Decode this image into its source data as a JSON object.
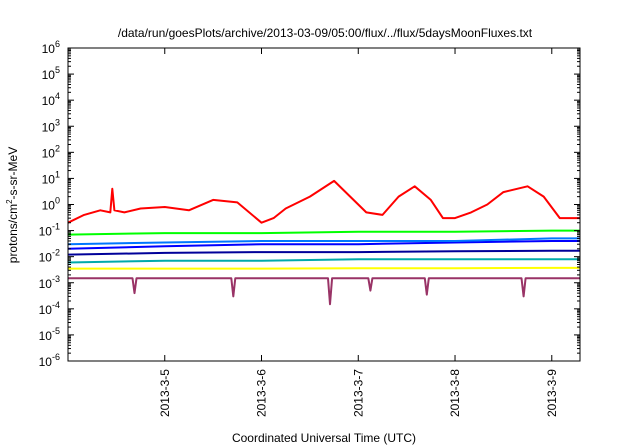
{
  "chart_data": {
    "type": "line",
    "title": "/data/run/goesPlots/archive/2013-03-09/05:00/flux/../flux/5daysMoonFluxes.txt",
    "xlabel": "Coordinated Universal Time (UTC)",
    "ylabel": {
      "pre": "protons/cm",
      "sup": "2",
      "post": "-s-sr-MeV"
    },
    "yscale": "log",
    "ylim": [
      1e-06,
      1000000.0
    ],
    "y_ticks": [
      {
        "base": "10",
        "exp": "-6",
        "value": 1e-06
      },
      {
        "base": "10",
        "exp": "-5",
        "value": 1e-05
      },
      {
        "base": "10",
        "exp": "-4",
        "value": 0.0001
      },
      {
        "base": "10",
        "exp": "-3",
        "value": 0.001
      },
      {
        "base": "10",
        "exp": "-2",
        "value": 0.01
      },
      {
        "base": "10",
        "exp": "-1",
        "value": 0.1
      },
      {
        "base": "10",
        "exp": "0",
        "value": 1
      },
      {
        "base": "10",
        "exp": "1",
        "value": 10
      },
      {
        "base": "10",
        "exp": "2",
        "value": 100
      },
      {
        "base": "10",
        "exp": "3",
        "value": 1000
      },
      {
        "base": "10",
        "exp": "4",
        "value": 10000
      },
      {
        "base": "10",
        "exp": "5",
        "value": 100000
      },
      {
        "base": "10",
        "exp": "6",
        "value": 1000000
      }
    ],
    "xlim": [
      "2013-03-04T00:00",
      "2013-03-09T07:00"
    ],
    "x_ticks": [
      {
        "label": "2013-3-5",
        "value": "2013-03-05T00:00"
      },
      {
        "label": "2013-3-6",
        "value": "2013-03-06T00:00"
      },
      {
        "label": "2013-3-7",
        "value": "2013-03-07T00:00"
      },
      {
        "label": "2013-3-8",
        "value": "2013-03-08T00:00"
      },
      {
        "label": "2013-3-9",
        "value": "2013-03-09T00:00"
      }
    ],
    "grid": false,
    "series": [
      {
        "color": "#ff0000",
        "x": [
          "2013-03-04T00:00",
          "2013-03-04T04:00",
          "2013-03-04T08:00",
          "2013-03-04T10:30",
          "2013-03-04T11:00",
          "2013-03-04T11:30",
          "2013-03-04T14:00",
          "2013-03-04T18:00",
          "2013-03-05T00:00",
          "2013-03-05T06:00",
          "2013-03-05T12:00",
          "2013-03-05T18:00",
          "2013-03-06T00:00",
          "2013-03-06T03:00",
          "2013-03-06T06:00",
          "2013-03-06T12:00",
          "2013-03-06T18:00",
          "2013-03-06T22:00",
          "2013-03-07T02:00",
          "2013-03-07T06:00",
          "2013-03-07T10:00",
          "2013-03-07T14:00",
          "2013-03-07T18:00",
          "2013-03-07T21:00",
          "2013-03-08T00:00",
          "2013-03-08T04:00",
          "2013-03-08T08:00",
          "2013-03-08T12:00",
          "2013-03-08T18:00",
          "2013-03-08T22:00",
          "2013-03-09T02:00",
          "2013-03-09T07:00"
        ],
        "values": [
          0.2,
          0.4,
          0.6,
          0.5,
          4,
          0.6,
          0.5,
          0.7,
          0.8,
          0.6,
          1.5,
          1.2,
          0.2,
          0.3,
          0.7,
          2,
          8,
          2,
          0.5,
          0.4,
          2,
          5,
          1.5,
          0.3,
          0.3,
          0.5,
          1,
          3,
          5,
          2,
          0.3,
          0.3
        ]
      },
      {
        "color": "#00ff00",
        "x": [
          "2013-03-04T00:00",
          "2013-03-05T00:00",
          "2013-03-06T00:00",
          "2013-03-07T00:00",
          "2013-03-08T00:00",
          "2013-03-09T00:00",
          "2013-03-09T07:00"
        ],
        "values": [
          0.07,
          0.08,
          0.08,
          0.09,
          0.09,
          0.1,
          0.1
        ]
      },
      {
        "color": "#0000ff",
        "x": [
          "2013-03-04T00:00",
          "2013-03-05T00:00",
          "2013-03-06T00:00",
          "2013-03-07T00:00",
          "2013-03-08T00:00",
          "2013-03-09T00:00",
          "2013-03-09T07:00"
        ],
        "values": [
          0.02,
          0.025,
          0.03,
          0.03,
          0.035,
          0.04,
          0.04
        ]
      },
      {
        "color": "#0077ff",
        "x": [
          "2013-03-04T00:00",
          "2013-03-05T00:00",
          "2013-03-06T00:00",
          "2013-03-07T00:00",
          "2013-03-08T00:00",
          "2013-03-09T00:00",
          "2013-03-09T07:00"
        ],
        "values": [
          0.03,
          0.035,
          0.04,
          0.04,
          0.04,
          0.05,
          0.05
        ]
      },
      {
        "color": "#000099",
        "x": [
          "2013-03-04T00:00",
          "2013-03-05T00:00",
          "2013-03-06T00:00",
          "2013-03-07T00:00",
          "2013-03-08T00:00",
          "2013-03-09T00:00",
          "2013-03-09T07:00"
        ],
        "values": [
          0.012,
          0.014,
          0.015,
          0.015,
          0.016,
          0.017,
          0.017
        ]
      },
      {
        "color": "#00aaaa",
        "x": [
          "2013-03-04T00:00",
          "2013-03-05T00:00",
          "2013-03-06T00:00",
          "2013-03-07T00:00",
          "2013-03-08T00:00",
          "2013-03-09T00:00",
          "2013-03-09T07:00"
        ],
        "values": [
          0.006,
          0.007,
          0.007,
          0.008,
          0.008,
          0.008,
          0.008
        ]
      },
      {
        "color": "#ffff00",
        "x": [
          "2013-03-04T00:00",
          "2013-03-05T00:00",
          "2013-03-06T00:00",
          "2013-03-07T00:00",
          "2013-03-08T00:00",
          "2013-03-09T00:00",
          "2013-03-09T07:00"
        ],
        "values": [
          0.0035,
          0.0035,
          0.0035,
          0.0036,
          0.0036,
          0.0037,
          0.0037
        ]
      },
      {
        "color": "#993366",
        "x": [
          "2013-03-04T00:00",
          "2013-03-04T16:00",
          "2013-03-04T16:30",
          "2013-03-04T17:00",
          "2013-03-05T16:30",
          "2013-03-05T17:00",
          "2013-03-05T17:30",
          "2013-03-06T16:30",
          "2013-03-06T17:00",
          "2013-03-06T17:30",
          "2013-03-07T02:30",
          "2013-03-07T03:00",
          "2013-03-07T03:30",
          "2013-03-07T16:30",
          "2013-03-07T17:00",
          "2013-03-07T17:30",
          "2013-03-08T16:30",
          "2013-03-08T17:00",
          "2013-03-08T17:30",
          "2013-03-09T07:00"
        ],
        "values": [
          0.0015,
          0.0015,
          0.0004,
          0.0015,
          0.0015,
          0.0003,
          0.0015,
          0.0015,
          0.00015,
          0.0015,
          0.0015,
          0.0005,
          0.0015,
          0.0015,
          0.00035,
          0.0015,
          0.0015,
          0.0003,
          0.0015,
          0.0015
        ]
      }
    ]
  }
}
